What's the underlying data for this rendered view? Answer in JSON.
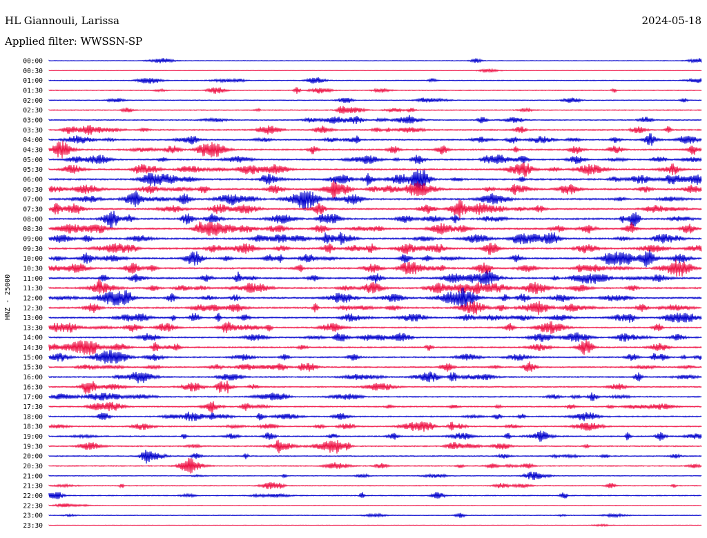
{
  "header": {
    "station": "HL Giannouli, Larissa",
    "date": "2024-05-18",
    "filter": "Applied filter: WWSSN-SP"
  },
  "chart_data": {
    "type": "line",
    "title": "HL Giannouli, Larissa",
    "ylabel": "HNZ - 25000",
    "rows": [
      "00:00",
      "00:30",
      "01:00",
      "01:30",
      "02:00",
      "02:30",
      "03:00",
      "03:30",
      "04:00",
      "04:30",
      "05:00",
      "05:30",
      "06:00",
      "06:30",
      "07:00",
      "07:30",
      "08:00",
      "08:30",
      "09:00",
      "09:30",
      "10:00",
      "10:30",
      "11:00",
      "11:30",
      "12:00",
      "12:30",
      "13:00",
      "13:30",
      "14:00",
      "14:30",
      "15:00",
      "15:30",
      "16:00",
      "16:30",
      "17:00",
      "17:30",
      "18:00",
      "18:30",
      "19:00",
      "19:30",
      "20:00",
      "20:30",
      "21:00",
      "21:30",
      "22:00",
      "22:30",
      "23:00",
      "23:30"
    ],
    "row_minutes": 30,
    "activity": [
      0.08,
      0.02,
      0.15,
      0.15,
      0.18,
      0.22,
      0.28,
      0.42,
      0.42,
      0.45,
      0.45,
      0.5,
      0.55,
      0.55,
      0.6,
      0.5,
      0.55,
      0.55,
      0.55,
      0.55,
      0.55,
      0.55,
      0.55,
      0.55,
      0.55,
      0.55,
      0.45,
      0.4,
      0.4,
      0.4,
      0.4,
      0.4,
      0.4,
      0.35,
      0.35,
      0.35,
      0.35,
      0.35,
      0.35,
      0.35,
      0.3,
      0.25,
      0.15,
      0.22,
      0.2,
      0.05,
      0.12,
      0.03
    ],
    "series": [
      {
        "color": "#0000cc"
      },
      {
        "color": "#ee1144"
      }
    ]
  }
}
